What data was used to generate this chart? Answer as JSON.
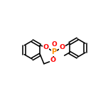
{
  "bg_color": "#ffffff",
  "bond_color": "#000000",
  "o_color": "#ff0000",
  "p_color": "#ff8c00",
  "figsize": [
    1.52,
    1.52
  ],
  "dpi": 100,
  "lw": 1.15,
  "s": 0.088,
  "xlim": [
    -0.02,
    1.02
  ],
  "ylim": [
    0.18,
    0.82
  ]
}
